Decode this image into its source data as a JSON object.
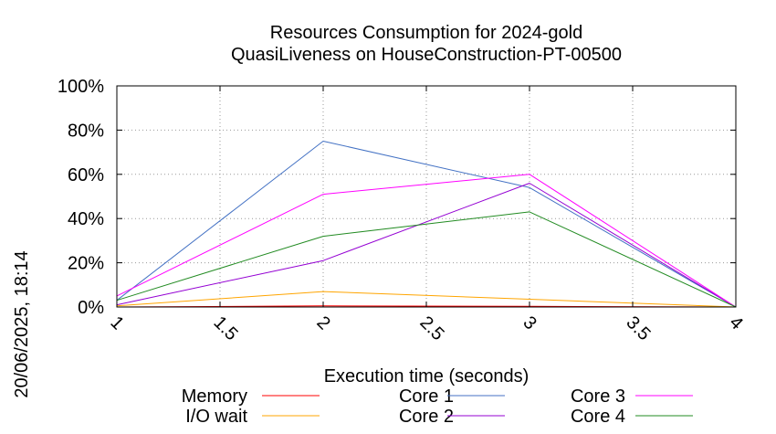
{
  "chart_data": {
    "type": "line",
    "title": [
      "Resources Consumption for 2024-gold",
      "QuasiLiveness on HouseConstruction-PT-00500"
    ],
    "xlabel": "Execution time (seconds)",
    "ylabel": "",
    "side_label": "20/06/2025, 18:14",
    "xlim": [
      1,
      4
    ],
    "ylim": [
      0,
      100
    ],
    "x_ticks": [
      1,
      1.5,
      2,
      2.5,
      3,
      3.5,
      4
    ],
    "x_tick_labels": [
      "1",
      "1.5",
      "2",
      "2.5",
      "3",
      "3.5",
      "4"
    ],
    "y_ticks": [
      0,
      20,
      40,
      60,
      80,
      100
    ],
    "y_tick_labels": [
      "0%",
      "20%",
      "40%",
      "60%",
      "80%",
      "100%"
    ],
    "grid": true,
    "legend_position": "bottom",
    "series": [
      {
        "name": "Memory",
        "color": "#ff0000",
        "x": [
          1,
          2,
          3,
          4
        ],
        "y": [
          0,
          0.5,
          0.3,
          0
        ]
      },
      {
        "name": "I/O wait",
        "color": "#ffa500",
        "x": [
          1,
          2,
          3,
          4
        ],
        "y": [
          0.5,
          7,
          3.5,
          0
        ]
      },
      {
        "name": "Core 1",
        "color": "#4472c4",
        "x": [
          1,
          2,
          3,
          4
        ],
        "y": [
          3,
          75,
          54,
          0
        ]
      },
      {
        "name": "Core 2",
        "color": "#9400d3",
        "x": [
          1,
          2,
          3,
          4
        ],
        "y": [
          1,
          21,
          56,
          0
        ]
      },
      {
        "name": "Core 3",
        "color": "#ff00ff",
        "x": [
          1,
          2,
          3,
          4
        ],
        "y": [
          5,
          51,
          60,
          0
        ]
      },
      {
        "name": "Core 4",
        "color": "#228b22",
        "x": [
          1,
          2,
          3,
          4
        ],
        "y": [
          3,
          32,
          43,
          0
        ]
      }
    ]
  }
}
